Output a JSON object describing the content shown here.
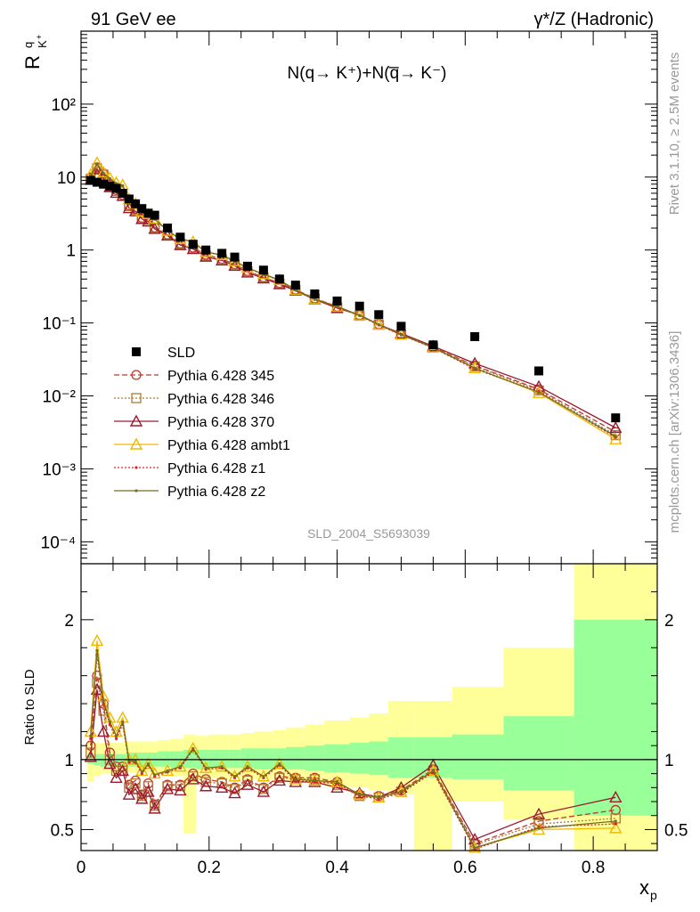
{
  "header": {
    "left_title": "91 GeV ee",
    "right_title": "γ*/Z (Hadronic)",
    "side_top": "Rivet 3.1.10, ≥ 2.5M events",
    "side_bottom": "mcplots.cern.ch [arXiv:1306.3436]"
  },
  "main_panel": {
    "ylabel_main": "R",
    "ylabel_sup": "q",
    "ylabel_sub": "K",
    "ylabel_subsup": "+",
    "formula_text": "N(q→ K⁺)+N(q̅→ K⁻)",
    "watermark": "SLD_2004_S5693039",
    "yticks": [
      "10⁻⁴",
      "10⁻³",
      "10⁻²",
      "10⁻¹",
      "1",
      "10",
      "10²"
    ]
  },
  "ratio_panel": {
    "ylabel": "Ratio to SLD",
    "yticks": [
      "0.5",
      "1",
      "2"
    ]
  },
  "x_axis": {
    "label": "x",
    "label_sub": "p",
    "ticks": [
      "0",
      "0.2",
      "0.4",
      "0.6",
      "0.8"
    ]
  },
  "colors": {
    "band_green": "#99ff99",
    "band_yellow": "#ffff99",
    "sld": "#000000",
    "py345": "#c0392b",
    "py346": "#b07830",
    "py370": "#9b1b30",
    "ambt1": "#f0b800",
    "z1": "#e02020",
    "z2": "#707020"
  },
  "chart_data": {
    "type": "scatter",
    "xlabel": "x_p",
    "ylabel": "R^q_K+",
    "xlim": [
      0,
      0.9
    ],
    "ylim_main": [
      5e-05,
      1000
    ],
    "ylim_ratio": [
      0.35,
      2.4
    ],
    "yscale_main": "log",
    "legend_position": "left-middle",
    "x": [
      0.015,
      0.025,
      0.035,
      0.045,
      0.055,
      0.065,
      0.075,
      0.085,
      0.095,
      0.105,
      0.115,
      0.135,
      0.155,
      0.175,
      0.195,
      0.22,
      0.24,
      0.26,
      0.285,
      0.31,
      0.335,
      0.365,
      0.4,
      0.435,
      0.465,
      0.5,
      0.55,
      0.615,
      0.715,
      0.835
    ],
    "bands": {
      "edges": [
        0.01,
        0.02,
        0.03,
        0.04,
        0.05,
        0.06,
        0.07,
        0.08,
        0.09,
        0.1,
        0.11,
        0.12,
        0.14,
        0.16,
        0.18,
        0.2,
        0.23,
        0.25,
        0.27,
        0.3,
        0.32,
        0.35,
        0.38,
        0.42,
        0.45,
        0.48,
        0.52,
        0.58,
        0.66,
        0.77,
        0.9
      ],
      "green_lo": [
        0.97,
        0.96,
        0.95,
        0.95,
        0.95,
        0.95,
        0.95,
        0.95,
        0.95,
        0.95,
        0.95,
        0.95,
        0.94,
        0.94,
        0.93,
        0.94,
        0.94,
        0.94,
        0.93,
        0.93,
        0.93,
        0.92,
        0.91,
        0.9,
        0.89,
        0.87,
        0.87,
        0.86,
        0.78,
        0.6
      ],
      "green_hi": [
        1.04,
        1.04,
        1.04,
        1.04,
        1.04,
        1.04,
        1.05,
        1.05,
        1.05,
        1.05,
        1.05,
        1.06,
        1.06,
        1.07,
        1.07,
        1.07,
        1.07,
        1.08,
        1.08,
        1.08,
        1.09,
        1.1,
        1.11,
        1.12,
        1.13,
        1.16,
        1.16,
        1.18,
        1.31,
        2.0
      ],
      "yellow_lo": [
        0.84,
        0.88,
        0.9,
        0.9,
        0.91,
        0.91,
        0.91,
        0.91,
        0.92,
        0.91,
        0.92,
        0.9,
        0.88,
        0.47,
        0.86,
        0.87,
        0.87,
        0.86,
        0.86,
        0.86,
        0.84,
        0.83,
        0.81,
        0.8,
        0.78,
        0.75,
        0.35,
        0.7,
        0.57,
        0.35
      ],
      "yellow_hi": [
        1.12,
        1.12,
        1.12,
        1.12,
        1.12,
        1.12,
        1.13,
        1.13,
        1.13,
        1.13,
        1.13,
        1.14,
        1.15,
        1.18,
        1.17,
        1.18,
        1.18,
        1.19,
        1.2,
        1.21,
        1.23,
        1.25,
        1.28,
        1.3,
        1.33,
        1.42,
        1.42,
        1.52,
        1.8,
        2.4
      ]
    },
    "series": [
      {
        "name": "SLD",
        "marker": "filled-square",
        "line": "none",
        "color": "#000000",
        "values": [
          9.0,
          8.5,
          8.0,
          7.5,
          7.0,
          6.0,
          5.0,
          4.3,
          3.7,
          3.2,
          3.0,
          2.0,
          1.5,
          1.2,
          1.0,
          0.9,
          0.8,
          0.6,
          0.53,
          0.4,
          0.33,
          0.25,
          0.2,
          0.17,
          0.13,
          0.09,
          0.05,
          0.065,
          0.022,
          0.005
        ]
      },
      {
        "name": "Pythia 6.428 345",
        "marker": "open-circle",
        "line": "dashed",
        "color": "#c0392b",
        "ratio": [
          1.1,
          1.6,
          1.4,
          1.05,
          0.95,
          0.95,
          0.82,
          0.85,
          0.75,
          0.83,
          0.68,
          0.82,
          0.82,
          0.9,
          0.86,
          0.84,
          0.8,
          0.86,
          0.8,
          0.88,
          0.87,
          0.87,
          0.84,
          0.75,
          0.74,
          0.78,
          0.93,
          0.4,
          0.56,
          0.64
        ]
      },
      {
        "name": "Pythia 6.428 346",
        "marker": "open-square",
        "line": "dotted",
        "color": "#b07830",
        "ratio": [
          1.05,
          1.55,
          1.35,
          1.0,
          0.92,
          0.92,
          0.8,
          0.83,
          0.74,
          0.81,
          0.67,
          0.81,
          0.81,
          0.88,
          0.84,
          0.83,
          0.79,
          0.85,
          0.79,
          0.87,
          0.86,
          0.86,
          0.82,
          0.74,
          0.73,
          0.77,
          0.92,
          0.39,
          0.54,
          0.58
        ]
      },
      {
        "name": "Pythia 6.428 370",
        "marker": "open-triangle",
        "line": "solid",
        "color": "#9b1b30",
        "ratio": [
          1.02,
          1.5,
          1.2,
          0.97,
          0.87,
          0.92,
          0.75,
          0.79,
          0.72,
          0.77,
          0.65,
          0.79,
          0.78,
          0.86,
          0.81,
          0.8,
          0.76,
          0.82,
          0.77,
          0.85,
          0.84,
          0.84,
          0.8,
          0.76,
          0.73,
          0.8,
          0.96,
          0.43,
          0.61,
          0.73
        ]
      },
      {
        "name": "Pythia 6.428 ambt1",
        "marker": "open-triangle",
        "line": "solid",
        "color": "#f0b800",
        "ratio": [
          1.2,
          1.85,
          1.45,
          1.3,
          1.2,
          1.3,
          1.0,
          1.0,
          0.92,
          0.97,
          0.9,
          0.92,
          0.95,
          1.08,
          0.94,
          0.95,
          0.88,
          0.95,
          0.88,
          0.97,
          0.86,
          0.85,
          0.84,
          0.75,
          0.73,
          0.77,
          0.92,
          0.37,
          0.5,
          0.51
        ]
      },
      {
        "name": "Pythia 6.428 z1",
        "marker": "small-dot",
        "line": "dotted",
        "color": "#e02020",
        "ratio": [
          1.15,
          1.75,
          1.4,
          1.25,
          1.15,
          1.25,
          0.98,
          0.98,
          0.9,
          0.96,
          0.88,
          0.91,
          0.94,
          1.07,
          0.93,
          0.94,
          0.87,
          0.94,
          0.87,
          0.96,
          0.85,
          0.84,
          0.83,
          0.74,
          0.72,
          0.76,
          0.91,
          0.36,
          0.52,
          0.54
        ]
      },
      {
        "name": "Pythia 6.428 z2",
        "marker": "small-dot",
        "line": "solid",
        "color": "#707020",
        "ratio": [
          1.17,
          1.78,
          1.42,
          1.27,
          1.17,
          1.27,
          0.99,
          0.99,
          0.91,
          0.97,
          0.89,
          0.92,
          0.95,
          1.08,
          0.94,
          0.95,
          0.88,
          0.95,
          0.88,
          0.97,
          0.86,
          0.85,
          0.84,
          0.75,
          0.73,
          0.77,
          0.92,
          0.37,
          0.51,
          0.56
        ]
      }
    ]
  }
}
